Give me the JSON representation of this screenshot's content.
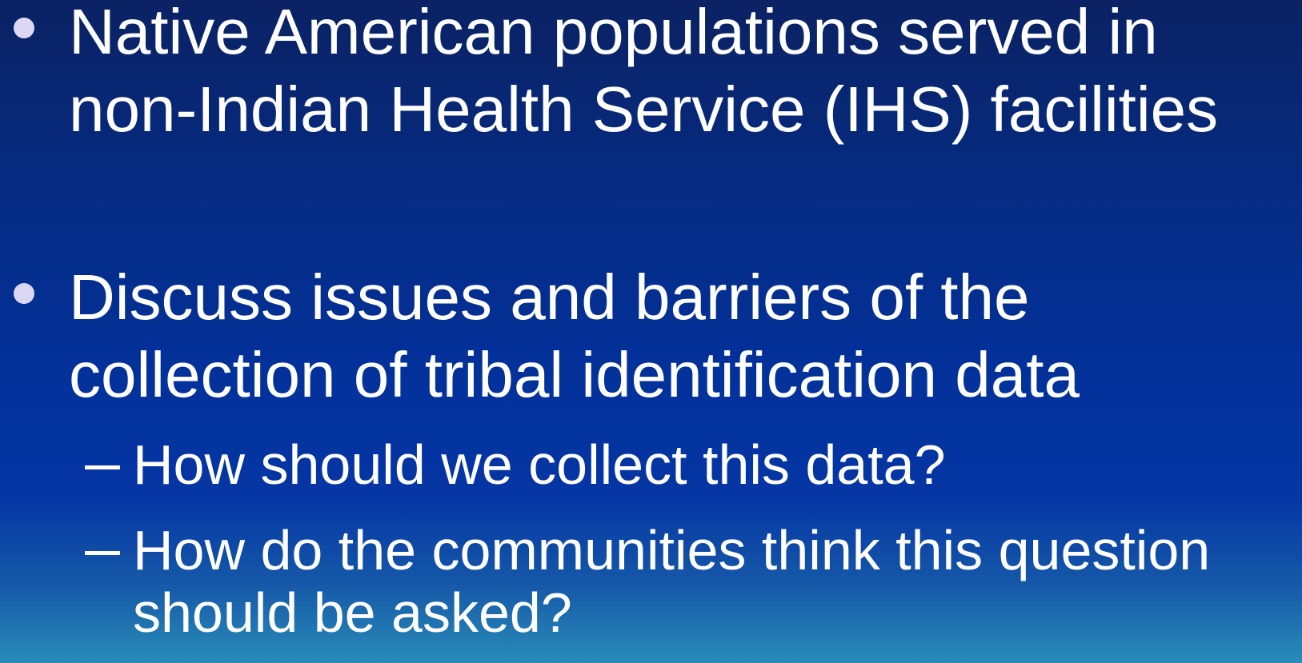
{
  "bullets": [
    {
      "lines": [
        "Native American populations served in",
        "non-Indian Health Service (IHS) facilities"
      ],
      "subbullets": []
    },
    {
      "lines": [
        "Discuss issues and barriers of the",
        "collection of tribal identification data"
      ],
      "subbullets": [
        {
          "lines": [
            "How should we collect this data?"
          ]
        },
        {
          "lines": [
            "How do the communities think this question",
            "should be asked?"
          ]
        }
      ]
    }
  ]
}
